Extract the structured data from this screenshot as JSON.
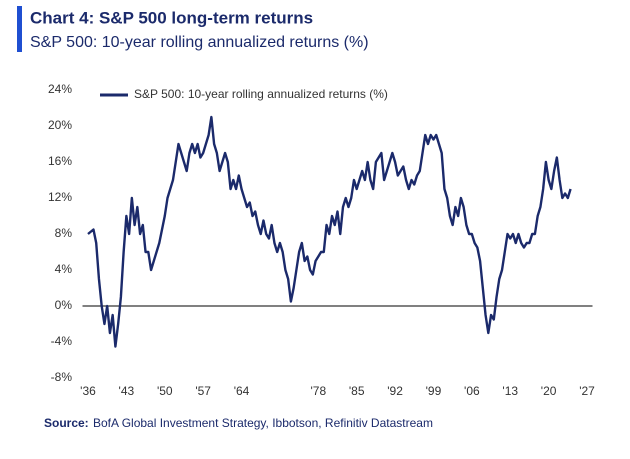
{
  "chart_data": {
    "type": "line",
    "title": "Chart 4: S&P 500 long-term returns",
    "subtitle": "S&P 500: 10-year rolling annualized returns (%)",
    "source_label": "Source:",
    "source": "BofA Global Investment Strategy, Ibbotson, Refinitiv Datastream",
    "xlim": [
      1935,
      2028
    ],
    "ylim": [
      -8,
      24
    ],
    "xticks": [
      {
        "value": 1936,
        "label": "'36"
      },
      {
        "value": 1943,
        "label": "'43"
      },
      {
        "value": 1950,
        "label": "'50"
      },
      {
        "value": 1957,
        "label": "'57"
      },
      {
        "value": 1964,
        "label": "'64"
      },
      {
        "value": 1978,
        "label": "'78"
      },
      {
        "value": 1985,
        "label": "'85"
      },
      {
        "value": 1992,
        "label": "'92"
      },
      {
        "value": 1999,
        "label": "'99"
      },
      {
        "value": 2006,
        "label": "'06"
      },
      {
        "value": 2013,
        "label": "'13"
      },
      {
        "value": 2020,
        "label": "'20"
      },
      {
        "value": 2027,
        "label": "'27"
      }
    ],
    "yticks": [
      {
        "value": 24,
        "label": "24%"
      },
      {
        "value": 20,
        "label": "20%"
      },
      {
        "value": 16,
        "label": "16%"
      },
      {
        "value": 12,
        "label": "12%"
      },
      {
        "value": 8,
        "label": "8%"
      },
      {
        "value": 4,
        "label": "4%"
      },
      {
        "value": 0,
        "label": "0%"
      },
      {
        "value": -4,
        "label": "-4%"
      },
      {
        "value": -8,
        "label": "-8%"
      }
    ],
    "x": [
      1936,
      1937,
      1937.5,
      1938,
      1938.5,
      1939,
      1939.5,
      1940,
      1940.5,
      1941,
      1941.5,
      1942,
      1942.5,
      1943,
      1943.5,
      1944,
      1944.5,
      1945,
      1945.5,
      1946,
      1946.5,
      1947,
      1947.5,
      1948,
      1948.5,
      1949,
      1949.5,
      1950,
      1950.5,
      1951,
      1951.5,
      1952,
      1952.5,
      1953,
      1953.5,
      1954,
      1954.5,
      1955,
      1955.5,
      1956,
      1956.5,
      1957,
      1957.5,
      1958,
      1958.5,
      1959,
      1959.5,
      1960,
      1960.5,
      1961,
      1961.5,
      1962,
      1962.5,
      1963,
      1963.5,
      1964,
      1964.5,
      1965,
      1965.5,
      1966,
      1966.5,
      1967,
      1967.5,
      1968,
      1968.5,
      1969,
      1969.5,
      1970,
      1970.5,
      1971,
      1971.5,
      1972,
      1972.5,
      1973,
      1973.5,
      1974,
      1974.5,
      1975,
      1975.5,
      1976,
      1976.5,
      1977,
      1977.5,
      1978,
      1978.5,
      1979,
      1979.5,
      1980,
      1980.5,
      1981,
      1981.5,
      1982,
      1982.5,
      1983,
      1983.5,
      1984,
      1984.5,
      1985,
      1985.5,
      1986,
      1986.5,
      1987,
      1987.5,
      1988,
      1988.5,
      1989,
      1989.5,
      1990,
      1990.5,
      1991,
      1991.5,
      1992,
      1992.5,
      1993,
      1993.5,
      1994,
      1994.5,
      1995,
      1995.5,
      1996,
      1996.5,
      1997,
      1997.5,
      1998,
      1998.5,
      1999,
      1999.5,
      2000,
      2000.5,
      2001,
      2001.5,
      2002,
      2002.5,
      2003,
      2003.5,
      2004,
      2004.5,
      2005,
      2005.5,
      2006,
      2006.5,
      2007,
      2007.5,
      2008,
      2008.5,
      2009,
      2009.5,
      2010,
      2010.5,
      2011,
      2011.5,
      2012,
      2012.5,
      2013,
      2013.5,
      2014,
      2014.5,
      2015,
      2015.5,
      2016,
      2016.5,
      2017,
      2017.5,
      2018,
      2018.5,
      2019,
      2019.5,
      2020,
      2020.5,
      2021,
      2021.5,
      2022,
      2022.5,
      2023,
      2023.5,
      2024
    ],
    "series": [
      {
        "name": "S&P 500: 10-year rolling annualized returns (%)",
        "color": "#1b2a6b",
        "values": [
          8,
          8.5,
          7,
          3,
          0,
          -2,
          0,
          -3,
          -1,
          -4.5,
          -2,
          1,
          6,
          10,
          8,
          12,
          9,
          11,
          8,
          9,
          6,
          6,
          4,
          5,
          6,
          7,
          8.5,
          10,
          12,
          13,
          14,
          16,
          18,
          17,
          16,
          15,
          17,
          18,
          17,
          18,
          16.5,
          17,
          18,
          19,
          21,
          18,
          17,
          15,
          16,
          17,
          16,
          13,
          14,
          13,
          14.5,
          13,
          12,
          11,
          11.5,
          10,
          10.5,
          9,
          8,
          9.5,
          8,
          7.5,
          9,
          7,
          6,
          7,
          6,
          4,
          3,
          0.5,
          2,
          4,
          6,
          7,
          5,
          5.5,
          4,
          3.5,
          5,
          5.5,
          6,
          6,
          9,
          8,
          10,
          9,
          10.5,
          8,
          11,
          12,
          11,
          12,
          14,
          13,
          14,
          15,
          14,
          16,
          14,
          13,
          16,
          16.5,
          17,
          14,
          15,
          16,
          17,
          16,
          14.5,
          15,
          15.5,
          14,
          13,
          14,
          13.5,
          14.5,
          15,
          17,
          19,
          18,
          19,
          18.5,
          19,
          18,
          17,
          13,
          12,
          10,
          9,
          11,
          10,
          12,
          11,
          9,
          8,
          8,
          7,
          6.5,
          5,
          2,
          -1,
          -3,
          -1,
          -1.5,
          1,
          3,
          4,
          6,
          8,
          7.5,
          8,
          7,
          8,
          7,
          6.5,
          7,
          7,
          8,
          8,
          10,
          11,
          13,
          16,
          14,
          13,
          15,
          16.5,
          14,
          12,
          12.5,
          12,
          13
        ]
      }
    ],
    "legend": "upper-left"
  }
}
